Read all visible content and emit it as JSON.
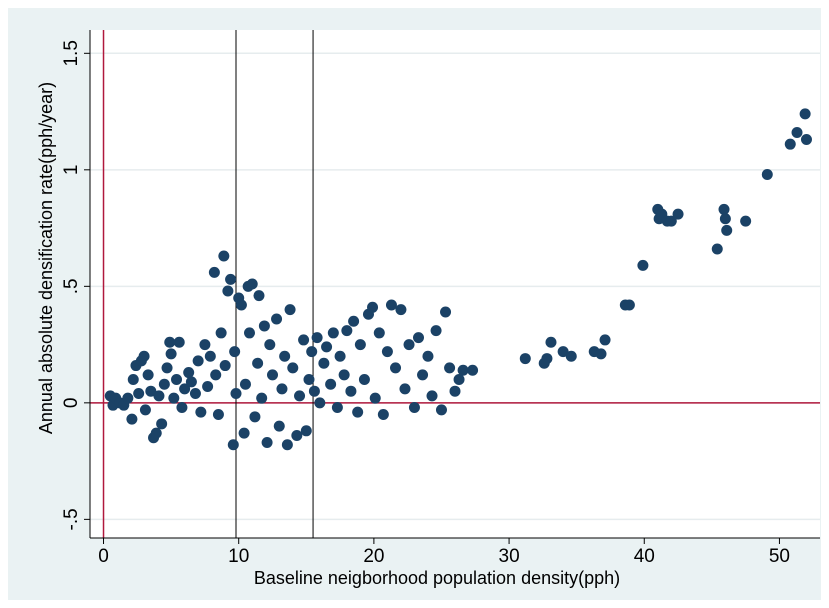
{
  "chart_data": {
    "type": "scatter",
    "title": "",
    "xlabel": "Baseline neigborhood population density(pph)",
    "ylabel": "Annual absolute densification rate(pph/year)",
    "xlim": [
      -1,
      53
    ],
    "ylim": [
      -0.58,
      1.6
    ],
    "x_ticks": [
      0,
      10,
      20,
      30,
      40,
      50
    ],
    "x_tick_labels": [
      "0",
      "10",
      "20",
      "30",
      "40",
      "50"
    ],
    "y_ticks": [
      -0.5,
      0,
      0.5,
      1,
      1.5
    ],
    "y_tick_labels": [
      "-.5",
      "0",
      ".5",
      "1",
      "1.5"
    ],
    "grid": "horizontal",
    "reference_lines": {
      "vertical_red_x": 0,
      "horizontal_red_y": 0,
      "vertical_black_x": [
        9.8,
        15.5
      ]
    },
    "colors": {
      "background": "#eaf2f3",
      "plot_area": "#ffffff",
      "marker": "#1b4266",
      "reference_red": "#b0183c",
      "reference_black": "#000000",
      "grid": "#e6ecee"
    },
    "series": [
      {
        "points": [
          [
            0.5,
            0.03
          ],
          [
            0.7,
            -0.01
          ],
          [
            0.9,
            0.02
          ],
          [
            1.2,
            0.0
          ],
          [
            1.5,
            -0.01
          ],
          [
            1.8,
            0.02
          ],
          [
            2.1,
            -0.07
          ],
          [
            2.2,
            0.1
          ],
          [
            2.4,
            0.16
          ],
          [
            2.6,
            0.04
          ],
          [
            2.8,
            0.18
          ],
          [
            3.0,
            0.2
          ],
          [
            3.1,
            -0.03
          ],
          [
            3.3,
            0.12
          ],
          [
            3.5,
            0.05
          ],
          [
            3.7,
            -0.15
          ],
          [
            3.9,
            -0.13
          ],
          [
            4.1,
            0.03
          ],
          [
            4.3,
            -0.09
          ],
          [
            4.5,
            0.08
          ],
          [
            4.7,
            0.15
          ],
          [
            4.9,
            0.26
          ],
          [
            5.0,
            0.21
          ],
          [
            5.2,
            0.02
          ],
          [
            5.4,
            0.1
          ],
          [
            5.6,
            0.26
          ],
          [
            5.8,
            -0.02
          ],
          [
            6.0,
            0.06
          ],
          [
            6.3,
            0.13
          ],
          [
            6.5,
            0.09
          ],
          [
            6.8,
            0.04
          ],
          [
            7.0,
            0.18
          ],
          [
            7.2,
            -0.04
          ],
          [
            7.5,
            0.25
          ],
          [
            7.7,
            0.07
          ],
          [
            7.9,
            0.2
          ],
          [
            8.2,
            0.56
          ],
          [
            8.3,
            0.12
          ],
          [
            8.5,
            -0.05
          ],
          [
            8.7,
            0.3
          ],
          [
            8.9,
            0.63
          ],
          [
            9.0,
            0.16
          ],
          [
            9.2,
            0.48
          ],
          [
            9.4,
            0.53
          ],
          [
            9.6,
            -0.18
          ],
          [
            9.7,
            0.22
          ],
          [
            9.8,
            0.04
          ],
          [
            10.0,
            0.45
          ],
          [
            10.2,
            0.42
          ],
          [
            10.4,
            -0.13
          ],
          [
            10.5,
            0.08
          ],
          [
            10.7,
            0.5
          ],
          [
            10.8,
            0.3
          ],
          [
            11.0,
            0.51
          ],
          [
            11.2,
            -0.06
          ],
          [
            11.4,
            0.17
          ],
          [
            11.5,
            0.46
          ],
          [
            11.7,
            0.02
          ],
          [
            11.9,
            0.33
          ],
          [
            12.1,
            -0.17
          ],
          [
            12.3,
            0.25
          ],
          [
            12.5,
            0.12
          ],
          [
            12.8,
            0.36
          ],
          [
            13.0,
            -0.1
          ],
          [
            13.2,
            0.06
          ],
          [
            13.4,
            0.2
          ],
          [
            13.6,
            -0.18
          ],
          [
            13.8,
            0.4
          ],
          [
            14.0,
            0.15
          ],
          [
            14.3,
            -0.14
          ],
          [
            14.5,
            0.03
          ],
          [
            14.8,
            0.27
          ],
          [
            15.0,
            -0.12
          ],
          [
            15.2,
            0.1
          ],
          [
            15.4,
            0.22
          ],
          [
            15.6,
            0.05
          ],
          [
            15.8,
            0.28
          ],
          [
            16.0,
            0.0
          ],
          [
            16.3,
            0.17
          ],
          [
            16.5,
            0.24
          ],
          [
            16.8,
            0.08
          ],
          [
            17.0,
            0.3
          ],
          [
            17.3,
            -0.02
          ],
          [
            17.5,
            0.2
          ],
          [
            17.8,
            0.12
          ],
          [
            18.0,
            0.31
          ],
          [
            18.3,
            0.05
          ],
          [
            18.5,
            0.35
          ],
          [
            18.8,
            -0.04
          ],
          [
            19.0,
            0.25
          ],
          [
            19.3,
            0.1
          ],
          [
            19.6,
            0.38
          ],
          [
            19.9,
            0.41
          ],
          [
            20.1,
            0.02
          ],
          [
            20.4,
            0.3
          ],
          [
            20.7,
            -0.05
          ],
          [
            21.0,
            0.22
          ],
          [
            21.3,
            0.42
          ],
          [
            21.6,
            0.15
          ],
          [
            22.0,
            0.4
          ],
          [
            22.3,
            0.06
          ],
          [
            22.6,
            0.25
          ],
          [
            23.0,
            -0.02
          ],
          [
            23.3,
            0.28
          ],
          [
            23.6,
            0.12
          ],
          [
            24.0,
            0.2
          ],
          [
            24.3,
            0.03
          ],
          [
            24.6,
            0.31
          ],
          [
            25.0,
            -0.03
          ],
          [
            25.3,
            0.39
          ],
          [
            25.6,
            0.15
          ],
          [
            26.0,
            0.05
          ],
          [
            26.3,
            0.1
          ],
          [
            26.6,
            0.14
          ],
          [
            27.3,
            0.14
          ],
          [
            31.2,
            0.19
          ],
          [
            32.6,
            0.17
          ],
          [
            32.8,
            0.19
          ],
          [
            33.1,
            0.26
          ],
          [
            34.0,
            0.22
          ],
          [
            34.6,
            0.2
          ],
          [
            36.3,
            0.22
          ],
          [
            36.8,
            0.21
          ],
          [
            37.1,
            0.27
          ],
          [
            38.6,
            0.42
          ],
          [
            38.9,
            0.42
          ],
          [
            39.9,
            0.59
          ],
          [
            41.0,
            0.83
          ],
          [
            41.1,
            0.79
          ],
          [
            41.3,
            0.81
          ],
          [
            41.7,
            0.78
          ],
          [
            42.0,
            0.78
          ],
          [
            42.5,
            0.81
          ],
          [
            45.4,
            0.66
          ],
          [
            45.9,
            0.83
          ],
          [
            46.0,
            0.79
          ],
          [
            46.1,
            0.74
          ],
          [
            47.5,
            0.78
          ],
          [
            49.1,
            0.98
          ],
          [
            50.8,
            1.11
          ],
          [
            51.3,
            1.16
          ],
          [
            51.9,
            1.24
          ],
          [
            52.0,
            1.13
          ]
        ]
      }
    ]
  }
}
